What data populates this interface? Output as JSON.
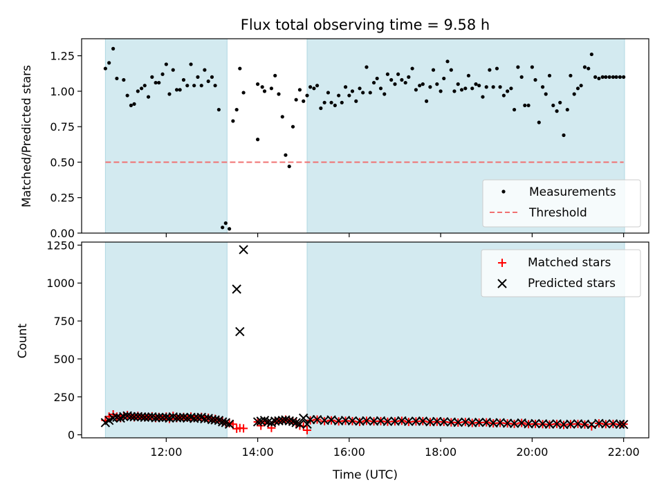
{
  "chart_data": [
    {
      "type": "scatter",
      "title": "Flux total observing time = 9.58 h",
      "xlabel": "",
      "ylabel": "Matched/Predicted stars",
      "x_unit": "hours UTC",
      "xlim": [
        10.15,
        22.55
      ],
      "ylim": [
        0.0,
        1.37
      ],
      "yticks": [
        0.0,
        0.25,
        0.5,
        0.75,
        1.0,
        1.25
      ],
      "ytick_labels": [
        "0.00",
        "0.25",
        "0.50",
        "0.75",
        "1.00",
        "1.25"
      ],
      "xticks": [
        12,
        14,
        16,
        18,
        20,
        22
      ],
      "xtick_labels": [
        "",
        "",
        "",
        "",
        "",
        ""
      ],
      "shaded_intervals": [
        [
          10.67,
          13.33
        ],
        [
          15.08,
          22.02
        ]
      ],
      "shade_color": "#d3eaf0",
      "grid": false,
      "legend_position": "lower-right",
      "legend": [
        {
          "label": "Measurements",
          "marker": "dot",
          "color": "#000000"
        },
        {
          "label": "Threshold",
          "marker": "dashed-line",
          "color": "#f07070"
        }
      ],
      "threshold": {
        "x": [
          10.67,
          22.0
        ],
        "y": 0.5,
        "color": "#f07070"
      },
      "series": [
        {
          "name": "Measurements",
          "color": "#000000",
          "x": [
            10.67,
            10.75,
            10.84,
            10.92,
            11.07,
            11.15,
            11.23,
            11.3,
            11.38,
            11.46,
            11.53,
            11.61,
            11.69,
            11.77,
            11.84,
            11.92,
            12.0,
            12.07,
            12.15,
            12.23,
            12.3,
            12.38,
            12.46,
            12.54,
            12.61,
            12.69,
            12.77,
            12.84,
            12.92,
            13.0,
            13.07,
            13.15,
            13.23,
            13.3,
            13.38,
            13.46,
            13.54,
            13.61,
            13.69,
            14.0,
            14.0,
            14.1,
            14.15,
            14.3,
            14.38,
            14.46,
            14.54,
            14.61,
            14.69,
            14.77,
            14.84,
            14.92,
            15.0,
            15.08,
            15.15,
            15.23,
            15.3,
            15.38,
            15.46,
            15.54,
            15.61,
            15.69,
            15.77,
            15.84,
            15.92,
            16.0,
            16.07,
            16.15,
            16.23,
            16.3,
            16.38,
            16.46,
            16.54,
            16.61,
            16.69,
            16.77,
            16.84,
            16.92,
            17.0,
            17.07,
            17.15,
            17.23,
            17.3,
            17.38,
            17.46,
            17.54,
            17.61,
            17.69,
            17.77,
            17.84,
            17.92,
            18.0,
            18.07,
            18.15,
            18.23,
            18.3,
            18.38,
            18.46,
            18.54,
            18.61,
            18.69,
            18.77,
            18.84,
            18.92,
            19.0,
            19.07,
            19.15,
            19.23,
            19.3,
            19.38,
            19.46,
            19.54,
            19.61,
            19.69,
            19.77,
            19.84,
            19.92,
            20.0,
            20.07,
            20.15,
            20.23,
            20.3,
            20.38,
            20.46,
            20.54,
            20.61,
            20.69,
            20.77,
            20.84,
            20.92,
            21.0,
            21.07,
            21.15,
            21.23,
            21.3,
            21.38,
            21.46,
            21.54,
            21.61,
            21.69,
            21.77,
            21.84,
            21.92,
            22.0
          ],
          "y": [
            1.16,
            1.2,
            1.3,
            1.09,
            1.08,
            0.97,
            0.9,
            0.91,
            1.0,
            1.02,
            1.04,
            0.96,
            1.1,
            1.06,
            1.06,
            1.12,
            1.19,
            0.98,
            1.15,
            1.01,
            1.01,
            1.08,
            1.04,
            1.19,
            1.04,
            1.1,
            1.04,
            1.15,
            1.07,
            1.1,
            1.04,
            0.87,
            0.04,
            0.07,
            0.03,
            0.79,
            0.87,
            1.16,
            0.99,
            0.66,
            1.05,
            1.03,
            1.0,
            1.02,
            1.11,
            0.98,
            0.82,
            0.55,
            0.47,
            0.75,
            0.94,
            1.01,
            0.93,
            0.97,
            1.03,
            1.02,
            1.04,
            0.88,
            0.92,
            0.99,
            0.92,
            0.9,
            0.97,
            0.92,
            1.03,
            0.97,
            1.0,
            0.93,
            1.02,
            0.99,
            1.17,
            0.99,
            1.06,
            1.09,
            1.02,
            0.98,
            1.12,
            1.08,
            1.05,
            1.12,
            1.08,
            1.06,
            1.1,
            1.16,
            1.01,
            1.04,
            1.05,
            0.93,
            1.03,
            1.15,
            1.05,
            1.0,
            1.09,
            1.21,
            1.15,
            1.0,
            1.05,
            1.01,
            1.02,
            1.11,
            1.02,
            1.05,
            1.04,
            0.96,
            1.03,
            1.15,
            1.03,
            1.16,
            1.03,
            0.97,
            1.0,
            1.02,
            0.87,
            1.17,
            1.1,
            0.9,
            0.9,
            1.17,
            1.08,
            0.78,
            1.03,
            0.98,
            1.11,
            0.9,
            0.86,
            0.92,
            0.69,
            0.87,
            1.11,
            0.98,
            1.02,
            1.04,
            1.17,
            1.16,
            1.26,
            1.1,
            1.09,
            1.1,
            1.1,
            1.1,
            1.1,
            1.1,
            1.1,
            1.1
          ]
        }
      ]
    },
    {
      "type": "scatter",
      "title": "",
      "xlabel": "Time (UTC)",
      "ylabel": "Count",
      "x_unit": "hours UTC",
      "xlim": [
        10.15,
        22.55
      ],
      "ylim": [
        -20,
        1270
      ],
      "yticks": [
        0,
        250,
        500,
        750,
        1000,
        1250
      ],
      "ytick_labels": [
        "0",
        "250",
        "500",
        "750",
        "1000",
        "1250"
      ],
      "xticks": [
        12,
        14,
        16,
        18,
        20,
        22
      ],
      "xtick_labels": [
        "12:00",
        "14:00",
        "16:00",
        "18:00",
        "20:00",
        "22:00"
      ],
      "shaded_intervals": [
        [
          10.67,
          13.33
        ],
        [
          15.08,
          22.02
        ]
      ],
      "shade_color": "#d3eaf0",
      "grid": false,
      "legend_position": "upper-right",
      "legend": [
        {
          "label": "Matched stars",
          "marker": "plus",
          "color": "#ff0000"
        },
        {
          "label": "Predicted stars",
          "marker": "x",
          "color": "#000000"
        }
      ],
      "series": [
        {
          "name": "Matched stars",
          "marker": "plus",
          "color": "#ff0000",
          "x": [
            10.67,
            10.75,
            10.84,
            10.92,
            11.0,
            11.07,
            11.15,
            11.23,
            11.3,
            11.38,
            11.46,
            11.53,
            11.61,
            11.69,
            11.77,
            11.84,
            11.92,
            12.0,
            12.07,
            12.15,
            12.23,
            12.3,
            12.38,
            12.46,
            12.54,
            12.61,
            12.69,
            12.77,
            12.84,
            12.92,
            13.0,
            13.07,
            13.15,
            13.23,
            13.3,
            13.38,
            13.46,
            13.54,
            13.61,
            13.69,
            14.0,
            14.07,
            14.15,
            14.23,
            14.3,
            14.38,
            14.46,
            14.54,
            14.61,
            14.69,
            14.77,
            14.84,
            14.92,
            15.0,
            15.08,
            15.15,
            15.3,
            15.46,
            15.61,
            15.77,
            15.92,
            16.07,
            16.23,
            16.38,
            16.54,
            16.69,
            16.84,
            17.0,
            17.15,
            17.3,
            17.46,
            17.61,
            17.77,
            17.92,
            18.07,
            18.23,
            18.38,
            18.54,
            18.69,
            18.84,
            19.0,
            19.15,
            19.3,
            19.46,
            19.61,
            19.77,
            19.92,
            20.07,
            20.23,
            20.38,
            20.54,
            20.69,
            20.84,
            21.0,
            21.15,
            21.3,
            21.46,
            21.61,
            21.77,
            21.92,
            22.0
          ],
          "y": [
            95,
            120,
            135,
            120,
            110,
            125,
            130,
            120,
            115,
            125,
            120,
            115,
            118,
            122,
            110,
            118,
            115,
            120,
            105,
            125,
            110,
            115,
            118,
            112,
            120,
            110,
            115,
            118,
            108,
            112,
            100,
            105,
            98,
            90,
            80,
            75,
            70,
            40,
            45,
            42,
            85,
            60,
            90,
            75,
            45,
            85,
            90,
            95,
            100,
            92,
            85,
            78,
            60,
            55,
            30,
            95,
            100,
            90,
            95,
            88,
            92,
            90,
            85,
            92,
            88,
            90,
            86,
            88,
            92,
            85,
            88,
            90,
            84,
            86,
            85,
            82,
            80,
            84,
            78,
            80,
            82,
            76,
            78,
            75,
            72,
            78,
            70,
            72,
            70,
            68,
            72,
            65,
            70,
            72,
            68,
            55,
            75,
            70,
            72,
            68,
            70
          ]
        },
        {
          "name": "Predicted stars",
          "marker": "x",
          "color": "#000000",
          "x": [
            10.67,
            10.75,
            10.84,
            10.92,
            11.0,
            11.07,
            11.15,
            11.23,
            11.3,
            11.38,
            11.46,
            11.53,
            11.61,
            11.69,
            11.77,
            11.84,
            11.92,
            12.0,
            12.07,
            12.15,
            12.23,
            12.3,
            12.38,
            12.46,
            12.54,
            12.61,
            12.69,
            12.77,
            12.84,
            12.92,
            13.0,
            13.07,
            13.15,
            13.23,
            13.3,
            13.38,
            13.54,
            13.61,
            13.69,
            14.0,
            14.07,
            14.15,
            14.23,
            14.3,
            14.38,
            14.46,
            14.54,
            14.61,
            14.69,
            14.77,
            14.84,
            14.92,
            15.0,
            15.08,
            15.15,
            15.3,
            15.46,
            15.61,
            15.77,
            15.92,
            16.07,
            16.23,
            16.38,
            16.54,
            16.69,
            16.84,
            17.0,
            17.15,
            17.3,
            17.46,
            17.61,
            17.77,
            17.92,
            18.07,
            18.23,
            18.38,
            18.54,
            18.69,
            18.84,
            19.0,
            19.15,
            19.3,
            19.46,
            19.61,
            19.77,
            19.92,
            20.07,
            20.23,
            20.38,
            20.54,
            20.69,
            20.84,
            21.0,
            21.15,
            21.3,
            21.46,
            21.61,
            21.77,
            21.92,
            22.0
          ],
          "y": [
            80,
            95,
            110,
            115,
            110,
            120,
            125,
            120,
            118,
            120,
            118,
            115,
            116,
            118,
            112,
            115,
            113,
            115,
            110,
            118,
            112,
            113,
            115,
            110,
            115,
            108,
            112,
            115,
            105,
            108,
            100,
            98,
            95,
            85,
            80,
            70,
            960,
            680,
            1220,
            85,
            90,
            95,
            85,
            80,
            90,
            92,
            95,
            98,
            92,
            88,
            80,
            70,
            110,
            70,
            100,
            100,
            95,
            98,
            92,
            95,
            92,
            90,
            92,
            90,
            92,
            88,
            90,
            92,
            88,
            90,
            90,
            86,
            88,
            86,
            84,
            82,
            84,
            80,
            82,
            82,
            78,
            80,
            76,
            75,
            78,
            72,
            74,
            72,
            70,
            72,
            68,
            70,
            72,
            70,
            68,
            75,
            72,
            72,
            70,
            68
          ]
        }
      ]
    }
  ]
}
